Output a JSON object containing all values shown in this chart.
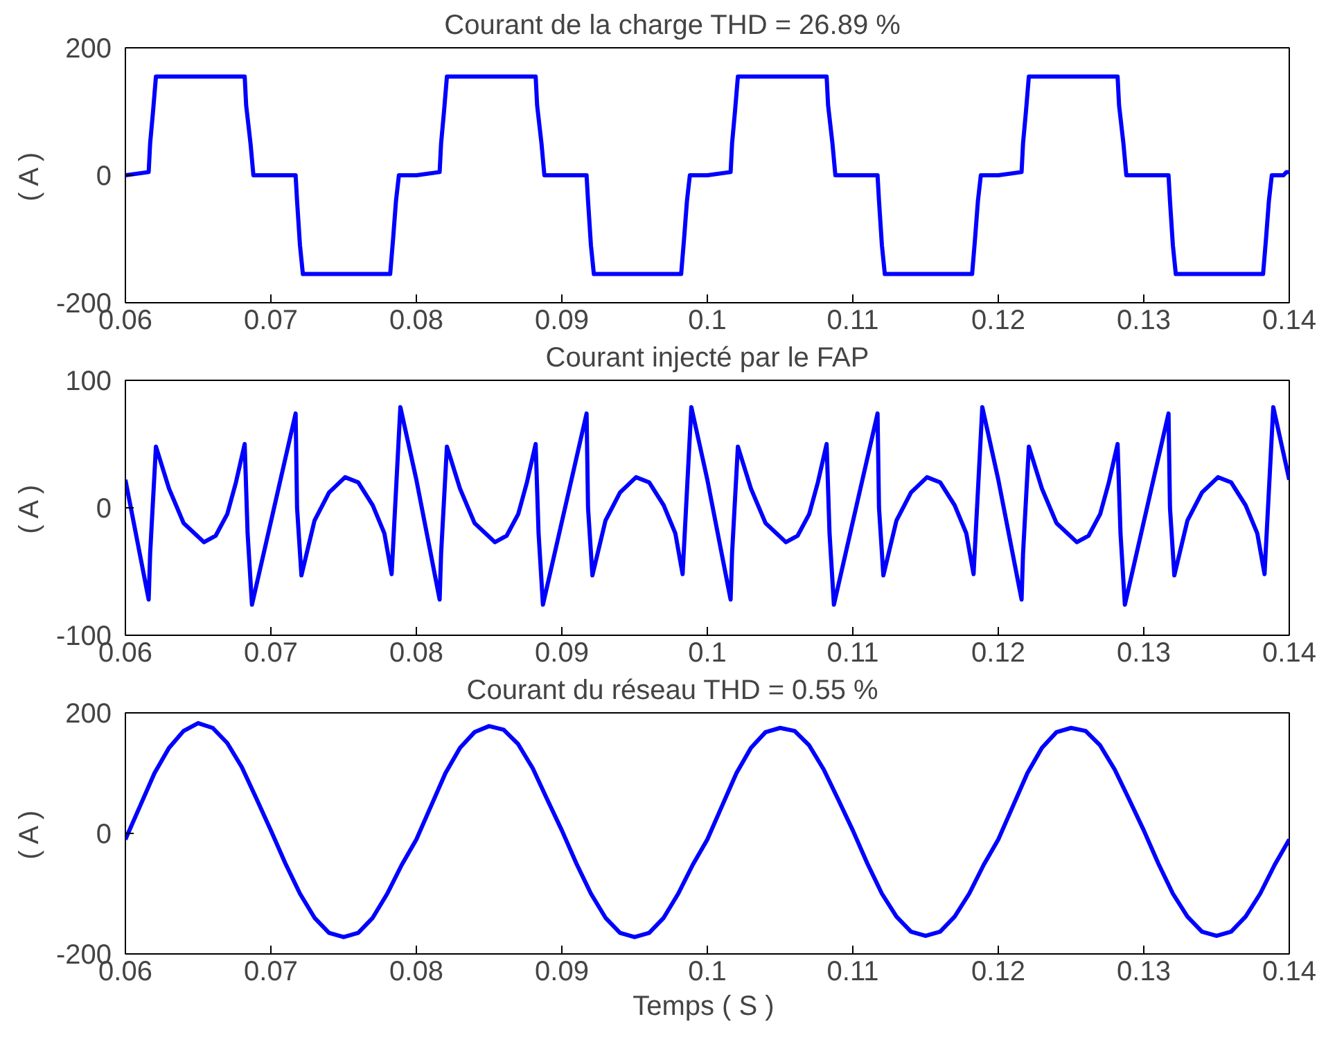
{
  "chart_data": [
    {
      "type": "line",
      "title": "Courant de la charge          THD = 26.89 %",
      "ylabel": "( A )",
      "xlim": [
        0.06,
        0.14
      ],
      "xticks": [
        0.06,
        0.07,
        0.08,
        0.09,
        0.1,
        0.11,
        0.12,
        0.13,
        0.14
      ],
      "ylim": [
        -200,
        200
      ],
      "yticks": [
        -200,
        0,
        200
      ],
      "grid": false,
      "line_style": "solid",
      "series": [
        {
          "color": "#0000ff",
          "x": [
            0.06,
            0.0616,
            0.0617,
            0.0619,
            0.0621,
            0.0682,
            0.0683,
            0.0686,
            0.0688,
            0.0717,
            0.0718,
            0.072,
            0.0722,
            0.0782,
            0.0784,
            0.0786,
            0.0788,
            0.08,
            0.0816,
            0.0817,
            0.0819,
            0.0821,
            0.0882,
            0.0883,
            0.0886,
            0.0888,
            0.0917,
            0.0918,
            0.092,
            0.0922,
            0.0982,
            0.0984,
            0.0986,
            0.0988,
            0.1,
            0.1016,
            0.1017,
            0.1019,
            0.1021,
            0.1082,
            0.1083,
            0.1086,
            0.1088,
            0.1117,
            0.1118,
            0.112,
            0.1122,
            0.1182,
            0.1184,
            0.1186,
            0.1188,
            0.12,
            0.1216,
            0.1217,
            0.1219,
            0.1221,
            0.1282,
            0.1283,
            0.1286,
            0.1288,
            0.1317,
            0.1318,
            0.132,
            0.1322,
            0.1382,
            0.1384,
            0.1386,
            0.1388,
            0.1396,
            0.1398,
            0.14
          ],
          "values": [
            0,
            5,
            50,
            100,
            155,
            155,
            110,
            50,
            0,
            0,
            -40,
            -110,
            -155,
            -155,
            -100,
            -40,
            0,
            0,
            5,
            50,
            100,
            155,
            155,
            110,
            50,
            0,
            0,
            -40,
            -110,
            -155,
            -155,
            -100,
            -40,
            0,
            0,
            5,
            50,
            100,
            155,
            155,
            110,
            50,
            0,
            0,
            -40,
            -110,
            -155,
            -155,
            -100,
            -40,
            0,
            0,
            5,
            50,
            100,
            155,
            155,
            110,
            50,
            0,
            0,
            -40,
            -110,
            -155,
            -155,
            -100,
            -40,
            0,
            0,
            5,
            5
          ]
        }
      ]
    },
    {
      "type": "line",
      "title": "Courant injecté par le FAP",
      "ylabel": "( A )",
      "xlim": [
        0.06,
        0.14
      ],
      "xticks": [
        0.06,
        0.07,
        0.08,
        0.09,
        0.1,
        0.11,
        0.12,
        0.13,
        0.14
      ],
      "ylim": [
        -100,
        100
      ],
      "yticks": [
        -100,
        0,
        100
      ],
      "grid": false,
      "line_style": "solid",
      "series": [
        {
          "color": "#0000ff",
          "x": [
            0.06,
            0.0616,
            0.0617,
            0.0621,
            0.063,
            0.064,
            0.0654,
            0.0662,
            0.067,
            0.0676,
            0.0682,
            0.0684,
            0.0687,
            0.0717,
            0.0718,
            0.0721,
            0.073,
            0.074,
            0.0751,
            0.076,
            0.077,
            0.0778,
            0.0783,
            0.0789,
            0.08,
            0.0816,
            0.0817,
            0.0821,
            0.083,
            0.084,
            0.0854,
            0.0862,
            0.087,
            0.0876,
            0.0882,
            0.0884,
            0.0887,
            0.0917,
            0.0918,
            0.0921,
            0.093,
            0.094,
            0.0951,
            0.096,
            0.097,
            0.0978,
            0.0983,
            0.0989,
            0.1,
            0.1016,
            0.1017,
            0.1021,
            0.103,
            0.104,
            0.1054,
            0.1062,
            0.107,
            0.1076,
            0.1082,
            0.1084,
            0.1087,
            0.1117,
            0.1118,
            0.1121,
            0.113,
            0.114,
            0.1151,
            0.116,
            0.117,
            0.1178,
            0.1183,
            0.1189,
            0.12,
            0.1216,
            0.1217,
            0.1221,
            0.123,
            0.124,
            0.1254,
            0.1262,
            0.127,
            0.1276,
            0.1282,
            0.1284,
            0.1287,
            0.1317,
            0.1318,
            0.1321,
            0.133,
            0.134,
            0.1351,
            0.136,
            0.137,
            0.1378,
            0.1383,
            0.1389,
            0.14
          ],
          "values": [
            22,
            -72,
            -36,
            48,
            15,
            -12,
            -27,
            -22,
            -5,
            20,
            50,
            -20,
            -76,
            74,
            0,
            -53,
            -10,
            12,
            24,
            20,
            2,
            -20,
            -52,
            79,
            22,
            -72,
            -36,
            48,
            15,
            -12,
            -27,
            -22,
            -5,
            20,
            50,
            -20,
            -76,
            74,
            0,
            -53,
            -10,
            12,
            24,
            20,
            2,
            -20,
            -52,
            79,
            22,
            -72,
            -36,
            48,
            15,
            -12,
            -27,
            -22,
            -5,
            20,
            50,
            -20,
            -76,
            74,
            0,
            -53,
            -10,
            12,
            24,
            20,
            2,
            -20,
            -52,
            79,
            22,
            -72,
            -36,
            48,
            15,
            -12,
            -27,
            -22,
            -5,
            20,
            50,
            -20,
            -76,
            74,
            0,
            -53,
            -10,
            12,
            24,
            20,
            2,
            -20,
            -52,
            79,
            22
          ]
        }
      ]
    },
    {
      "type": "line",
      "title": "Courant du réseau          THD = 0.55 %",
      "xlabel": "Temps  ( S )",
      "ylabel": "( A )",
      "xlim": [
        0.06,
        0.14
      ],
      "xticks": [
        0.06,
        0.07,
        0.08,
        0.09,
        0.1,
        0.11,
        0.12,
        0.13,
        0.14
      ],
      "ylim": [
        -200,
        200
      ],
      "yticks": [
        -200,
        0,
        200
      ],
      "grid": false,
      "line_style": "solid",
      "series": [
        {
          "color": "#0000ff",
          "x": [
            0.06,
            0.061,
            0.062,
            0.063,
            0.064,
            0.065,
            0.066,
            0.067,
            0.068,
            0.069,
            0.07,
            0.071,
            0.072,
            0.073,
            0.074,
            0.075,
            0.076,
            0.077,
            0.078,
            0.079,
            0.08,
            0.081,
            0.082,
            0.083,
            0.084,
            0.085,
            0.086,
            0.087,
            0.088,
            0.089,
            0.09,
            0.091,
            0.092,
            0.093,
            0.094,
            0.095,
            0.096,
            0.097,
            0.098,
            0.099,
            0.1,
            0.101,
            0.102,
            0.103,
            0.104,
            0.105,
            0.106,
            0.107,
            0.108,
            0.109,
            0.11,
            0.111,
            0.112,
            0.113,
            0.114,
            0.115,
            0.116,
            0.117,
            0.118,
            0.119,
            0.12,
            0.121,
            0.122,
            0.123,
            0.124,
            0.125,
            0.126,
            0.127,
            0.128,
            0.129,
            0.13,
            0.131,
            0.132,
            0.133,
            0.134,
            0.135,
            0.136,
            0.137,
            0.138,
            0.139,
            0.14
          ],
          "values": [
            -10,
            45,
            100,
            142,
            170,
            183,
            175,
            150,
            110,
            58,
            5,
            -50,
            -100,
            -140,
            -165,
            -172,
            -165,
            -140,
            -100,
            -52,
            -10,
            45,
            100,
            142,
            168,
            178,
            172,
            148,
            108,
            56,
            5,
            -50,
            -100,
            -140,
            -165,
            -172,
            -165,
            -140,
            -100,
            -52,
            -10,
            45,
            100,
            142,
            168,
            175,
            170,
            146,
            106,
            56,
            5,
            -50,
            -100,
            -138,
            -163,
            -170,
            -163,
            -138,
            -100,
            -52,
            -10,
            45,
            100,
            142,
            168,
            175,
            170,
            146,
            106,
            56,
            5,
            -50,
            -100,
            -138,
            -163,
            -170,
            -163,
            -138,
            -100,
            -52,
            -10
          ]
        }
      ]
    }
  ]
}
